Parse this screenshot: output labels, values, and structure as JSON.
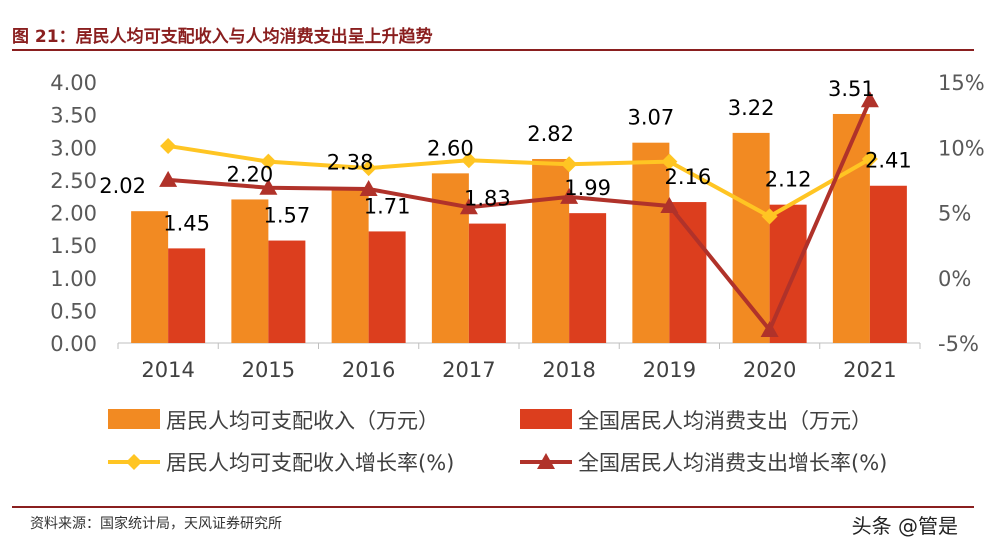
{
  "title": "图 21：居民人均可支配收入与人均消费支出呈上升趋势",
  "source": "资料来源：国家统计局，天风证券研究所",
  "watermark": "头条 @管是",
  "colors": {
    "income_bar": "#F28A22",
    "consumption_bar": "#DC3E1E",
    "income_line": "#FFC523",
    "consumption_line": "#B0322A",
    "title": "#8A1F1F"
  },
  "chart_data": {
    "type": "bar",
    "categories": [
      "2014",
      "2015",
      "2016",
      "2017",
      "2018",
      "2019",
      "2020",
      "2021"
    ],
    "ylim": [
      0,
      4.0
    ],
    "y_ticks": [
      "0.00",
      "0.50",
      "1.00",
      "1.50",
      "2.00",
      "2.50",
      "3.00",
      "3.50",
      "4.00"
    ],
    "y2lim": [
      -5,
      15
    ],
    "y2_ticks": [
      "-5%",
      "0%",
      "5%",
      "10%",
      "15%"
    ],
    "series": [
      {
        "name": "居民人均可支配收入（万元）",
        "type": "bar",
        "axis": "left",
        "values": [
          2.02,
          2.2,
          2.38,
          2.6,
          2.82,
          3.07,
          3.22,
          3.51
        ],
        "labels": [
          "2.02",
          "2.20",
          "2.38",
          "2.60",
          "2.82",
          "3.07",
          "3.22",
          "3.51"
        ]
      },
      {
        "name": "全国居民人均消费支出（万元）",
        "type": "bar",
        "axis": "left",
        "values": [
          1.45,
          1.57,
          1.71,
          1.83,
          1.99,
          2.16,
          2.12,
          2.41
        ],
        "labels": [
          "1.45",
          "1.57",
          "1.71",
          "1.83",
          "1.99",
          "2.16",
          "2.12",
          "2.41"
        ]
      },
      {
        "name": "居民人均可支配收入增长率(%)",
        "type": "line",
        "axis": "right",
        "marker": "diamond",
        "values": [
          10.1,
          8.9,
          8.4,
          9.0,
          8.7,
          8.9,
          4.7,
          9.1
        ]
      },
      {
        "name": "全国居民人均消费支出增长率(%)",
        "type": "line",
        "axis": "right",
        "marker": "triangle",
        "values": [
          7.5,
          6.9,
          6.8,
          5.4,
          6.2,
          5.5,
          -4.0,
          13.6
        ]
      }
    ],
    "legend_position": "bottom",
    "grid": false
  }
}
